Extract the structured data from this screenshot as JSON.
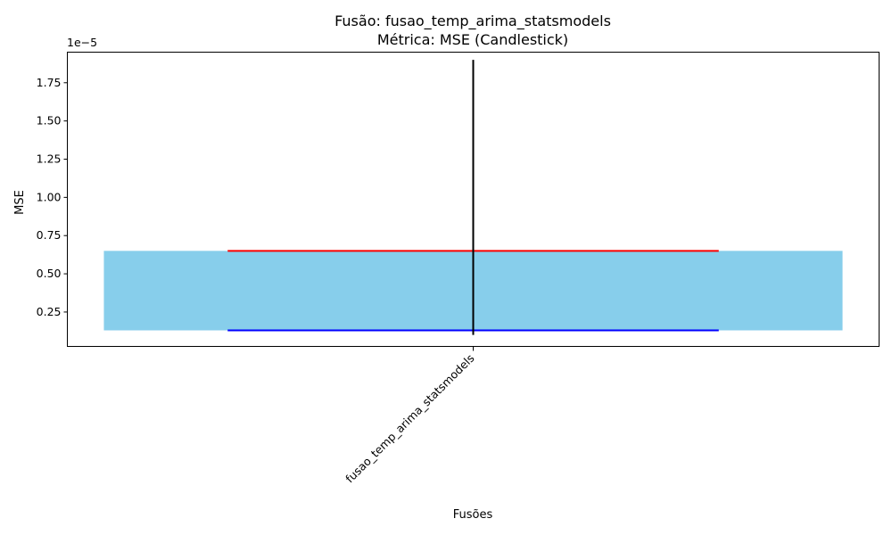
{
  "chart_data": {
    "type": "candlestick",
    "title": "Fusão: fusao_temp_arima_statsmodels",
    "subtitle": "Métrica: MSE (Candlestick)",
    "xlabel": "Fusões",
    "ylabel": "MSE",
    "offset_label": "1e−5",
    "scale_exponent": -5,
    "categories": [
      "fusao_temp_arima_statsmodels"
    ],
    "candles": [
      {
        "category": "fusao_temp_arima_statsmodels",
        "low": 1e-06,
        "q1": 1.3e-06,
        "q3": 6.5e-06,
        "high": 1.9e-05
      }
    ],
    "ylim": [
      2.5e-07,
      1.95e-05
    ],
    "yticks": [
      2.5e-06,
      5e-06,
      7.5e-06,
      1e-05,
      1.25e-05,
      1.5e-05,
      1.75e-05
    ],
    "ytick_labels": [
      "0.25",
      "0.50",
      "0.75",
      "1.00",
      "1.25",
      "1.50",
      "1.75"
    ],
    "grid": false,
    "colors": {
      "body": "#87ceeb",
      "wick": "#000000",
      "upper_line": "#ff0000",
      "lower_line": "#0000ff",
      "axes": "#000000"
    }
  }
}
